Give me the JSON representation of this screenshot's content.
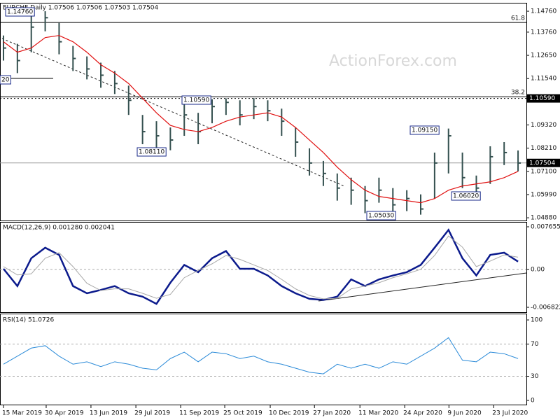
{
  "chart_data": [
    {
      "type": "ohlc",
      "title": "EURCHF,Daily  1.07506 1.07506 1.07503 1.07504",
      "watermark": "ActionForex.com",
      "color": "#34504f",
      "high": [
        1.136,
        1.132,
        1.146,
        1.1476,
        1.142,
        1.131,
        1.126,
        1.123,
        1.119,
        1.112,
        1.098,
        1.095,
        1.092,
        1.103,
        1.099,
        1.1055,
        1.1059,
        1.105,
        1.106,
        1.105,
        1.101,
        1.092,
        1.082,
        1.076,
        1.07,
        1.068,
        1.064,
        1.068,
        1.063,
        1.062,
        1.06,
        1.08,
        1.0915,
        1.08,
        1.069,
        1.083,
        1.085,
        1.081
      ],
      "low": [
        1.124,
        1.118,
        1.128,
        1.138,
        1.127,
        1.119,
        1.115,
        1.111,
        1.108,
        1.098,
        1.084,
        1.082,
        1.0811,
        1.088,
        1.084,
        1.094,
        1.098,
        1.093,
        1.096,
        1.095,
        1.088,
        1.078,
        1.069,
        1.064,
        1.057,
        1.055,
        1.051,
        1.056,
        1.0505,
        1.052,
        1.0503,
        1.058,
        1.07,
        1.063,
        1.0602,
        1.065,
        1.074,
        1.071
      ],
      "close": [
        1.13,
        1.124,
        1.14,
        1.1445,
        1.133,
        1.125,
        1.12,
        1.117,
        1.113,
        1.105,
        1.09,
        1.088,
        1.086,
        1.098,
        1.09,
        1.102,
        1.104,
        1.098,
        1.102,
        1.1,
        1.095,
        1.085,
        1.075,
        1.07,
        1.063,
        1.062,
        1.057,
        1.062,
        1.055,
        1.058,
        1.053,
        1.075,
        1.088,
        1.068,
        1.063,
        1.078,
        1.08,
        1.075
      ],
      "series": [
        {
          "color": "#e01010",
          "values": [
            1.133,
            1.128,
            1.13,
            1.135,
            1.136,
            1.133,
            1.128,
            1.122,
            1.118,
            1.113,
            1.106,
            1.099,
            1.093,
            1.091,
            1.09,
            1.092,
            1.095,
            1.097,
            1.098,
            1.099,
            1.097,
            1.092,
            1.086,
            1.08,
            1.073,
            1.067,
            1.062,
            1.059,
            1.058,
            1.057,
            1.056,
            1.058,
            1.062,
            1.064,
            1.065,
            1.066,
            1.068,
            1.071
          ]
        }
      ],
      "ylim": [
        1.0475,
        1.1513
      ],
      "yticks": [
        {
          "value": 1.1476,
          "label": "1.14760"
        },
        {
          "value": 1.1376,
          "label": "1.13760"
        },
        {
          "value": 1.1265,
          "label": "1.12650"
        },
        {
          "value": 1.1154,
          "label": "1.11540"
        },
        {
          "value": 1.0932,
          "label": "1.09320"
        },
        {
          "value": 1.0821,
          "label": "1.08210"
        },
        {
          "value": 1.071,
          "label": "1.07100"
        },
        {
          "value": 1.0599,
          "label": "1.05990"
        },
        {
          "value": 1.0488,
          "label": "1.04880"
        }
      ],
      "marked_price": {
        "value": 1.1059,
        "label": "1.10590"
      },
      "current_price": {
        "value": 1.07504,
        "label": "1.07504"
      },
      "levels": [
        {
          "value": 1.1422,
          "label": "61.8"
        },
        {
          "value": 1.1067,
          "label": "38.2"
        }
      ],
      "annotations": [
        "1.14760",
        "1.10590",
        "1.08110",
        "1.09150",
        "1.06020",
        "1.05030",
        "20"
      ]
    },
    {
      "type": "macd",
      "title": "MACD(12,26,9) 0.001280 0.002041",
      "series": [
        {
          "color": "#0b1a8c",
          "values": [
            0.0001,
            -0.003,
            0.002,
            0.0039,
            0.0026,
            -0.003,
            -0.0043,
            -0.0037,
            -0.003,
            -0.0043,
            -0.0049,
            -0.0062,
            -0.0024,
            0.0008,
            -0.0005,
            0.002,
            0.0033,
            0.0001,
            0.0001,
            -0.0011,
            -0.003,
            -0.0043,
            -0.0053,
            -0.0055,
            -0.0049,
            -0.0018,
            -0.003,
            -0.0018,
            -0.0011,
            -0.0005,
            0.0008,
            0.0039,
            0.0071,
            0.002,
            -0.0011,
            0.0026,
            0.003,
            0.0014
          ]
        },
        {
          "color": "#a8a8a8",
          "values": [
            0.0005,
            -0.001,
            -0.0008,
            0.002,
            0.003,
            0.0005,
            -0.0025,
            -0.0038,
            -0.0035,
            -0.0035,
            -0.0043,
            -0.0052,
            -0.0045,
            -0.0015,
            -0.0002,
            0.001,
            0.0025,
            0.0018,
            0.0008,
            -0.0002,
            -0.0018,
            -0.0035,
            -0.0047,
            -0.0053,
            -0.0052,
            -0.0035,
            -0.003,
            -0.0024,
            -0.0015,
            -0.0008,
            0.0,
            0.0025,
            0.006,
            0.004,
            0.0005,
            0.0015,
            0.0026,
            0.0022
          ]
        }
      ],
      "ylim": [
        -0.0077,
        0.00841
      ],
      "yticks": [
        0.007655,
        {
          "value": 0,
          "label": "0.00"
        },
        -0.006822
      ]
    },
    {
      "type": "rsi",
      "title": "RSI(14) 51.0726",
      "series": [
        {
          "color": "#2a8ad8",
          "values": [
            45,
            55,
            65,
            68,
            55,
            45,
            48,
            42,
            48,
            45,
            40,
            38,
            52,
            60,
            48,
            60,
            58,
            52,
            55,
            48,
            45,
            40,
            35,
            33,
            45,
            40,
            45,
            40,
            48,
            45,
            55,
            65,
            78,
            50,
            48,
            60,
            58,
            52
          ]
        }
      ],
      "ylim": [
        -5.2,
        107
      ],
      "yticks": [
        100,
        70,
        30,
        0
      ],
      "xlim": [
        -0.25,
        37.6
      ],
      "xticks": [
        {
          "value": 0,
          "label": "15 Mar 2019"
        },
        {
          "value": 3.07,
          "label": "30 Apr 2019"
        },
        {
          "value": 6.29,
          "label": "13 Jun 2019"
        },
        {
          "value": 9.52,
          "label": "29 Jul 2019"
        },
        {
          "value": 12.74,
          "label": "11 Sep 2019"
        },
        {
          "value": 15.91,
          "label": "25 Oct 2019"
        },
        {
          "value": 19.18,
          "label": "10 Dec 2019"
        },
        {
          "value": 22.36,
          "label": "27 Jan 2020"
        },
        {
          "value": 25.63,
          "label": "11 Mar 2020"
        },
        {
          "value": 28.85,
          "label": "24 Apr 2020"
        },
        {
          "value": 32.03,
          "label": "9 Jun 2020"
        },
        {
          "value": 35.25,
          "label": "23 Jul 2020"
        }
      ]
    }
  ]
}
